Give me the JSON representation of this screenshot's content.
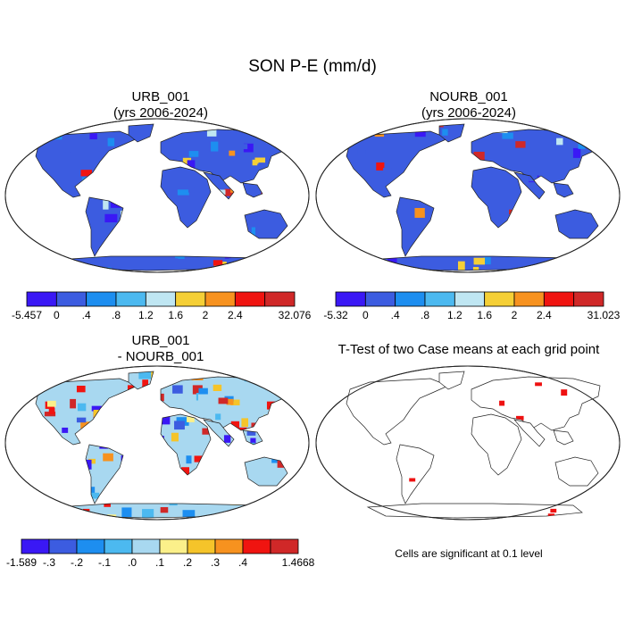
{
  "title": "SON P-E (mm/d)",
  "colors": {
    "land_default": "#3a55e0",
    "ocean": "#ffffff",
    "outline": "#222222",
    "sig": "#ee1111"
  },
  "panels": [
    {
      "id": "urb",
      "title_lines": [
        "URB_001",
        "(yrs 2006-2024)"
      ],
      "colorbar": {
        "colors": [
          "#3a18f5",
          "#3c5ce0",
          "#1d8ef0",
          "#4cb9f0",
          "#bfe6f2",
          "#f5cf36",
          "#f7921f",
          "#f01410",
          "#d02828"
        ],
        "labels": [
          "-5.457",
          "0",
          ".4",
          ".8",
          "1.2",
          "1.6",
          "2",
          "2.4",
          "32.076"
        ]
      }
    },
    {
      "id": "nourb",
      "title_lines": [
        "NOURB_001",
        "(yrs 2006-2024)"
      ],
      "colorbar": {
        "colors": [
          "#3a18f5",
          "#3c5ce0",
          "#1d8ef0",
          "#4cb9f0",
          "#bfe6f2",
          "#f5cf36",
          "#f7921f",
          "#f01410",
          "#d02828"
        ],
        "labels": [
          "-5.32",
          "0",
          ".4",
          ".8",
          "1.2",
          "1.6",
          "2",
          "2.4",
          "31.023"
        ]
      }
    },
    {
      "id": "diff",
      "title_lines": [
        "URB_001",
        "- NOURB_001"
      ],
      "colorbar": {
        "colors": [
          "#3a18f5",
          "#3c5ce0",
          "#1d8ef0",
          "#4cb9f0",
          "#a8d8f0",
          "#fbf08a",
          "#f5c42a",
          "#f7921f",
          "#f01410",
          "#d02828"
        ],
        "labels": [
          "-1.589",
          "-.3",
          "-.2",
          "-.1",
          ".0",
          ".1",
          ".2",
          ".3",
          ".4",
          "1.4668"
        ]
      }
    },
    {
      "id": "ttest",
      "title_lines": [
        "T-Test of two Case means at each grid point"
      ],
      "note": "Cells are significant at 0.1 level"
    }
  ]
}
